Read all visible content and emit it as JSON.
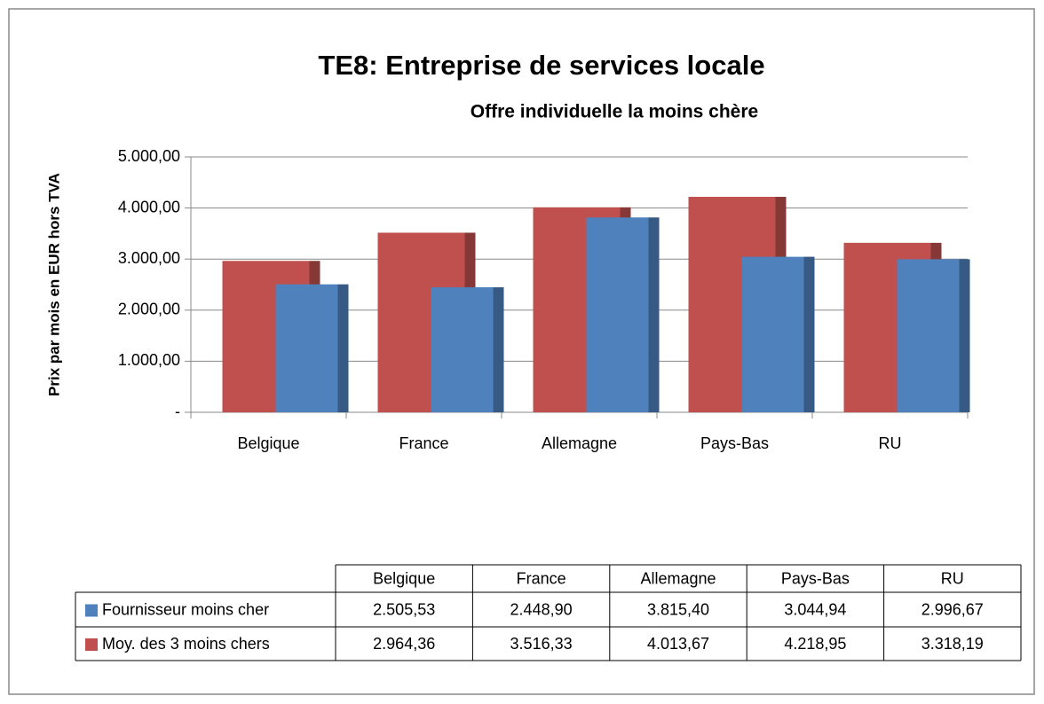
{
  "chart_data": {
    "type": "bar",
    "title": "TE8: Entreprise de services locale",
    "subtitle": "Offre individuelle la moins chère",
    "y_label": "Prix par mois en EUR hors TVA",
    "categories": [
      "Belgique",
      "France",
      "Allemagne",
      "Pays-Bas",
      "RU"
    ],
    "series": [
      {
        "name": "Fournisseur moins cher",
        "color": "#4f81bd",
        "values": [
          2505.53,
          2448.9,
          3815.4,
          3044.94,
          2996.67
        ],
        "value_labels": [
          "2.505,53",
          "2.448,90",
          "3.815,40",
          "3.044,94",
          "2.996,67"
        ]
      },
      {
        "name": "Moy. des 3 moins chers",
        "color": "#c0504d",
        "values": [
          2964.36,
          3516.33,
          4013.67,
          4218.95,
          3318.19
        ],
        "value_labels": [
          "2.964,36",
          "3.516,33",
          "4.013,67",
          "4.218,95",
          "3.318,19"
        ]
      }
    ],
    "ylim": [
      0,
      5000
    ],
    "yticks": [
      {
        "value": 0,
        "label": "-"
      },
      {
        "value": 1000,
        "label": "1.000,00"
      },
      {
        "value": 2000,
        "label": "2.000,00"
      },
      {
        "value": 3000,
        "label": "3.000,00"
      },
      {
        "value": 4000,
        "label": "4.000,00"
      },
      {
        "value": 5000,
        "label": "5.000,00"
      }
    ],
    "grid": true
  }
}
